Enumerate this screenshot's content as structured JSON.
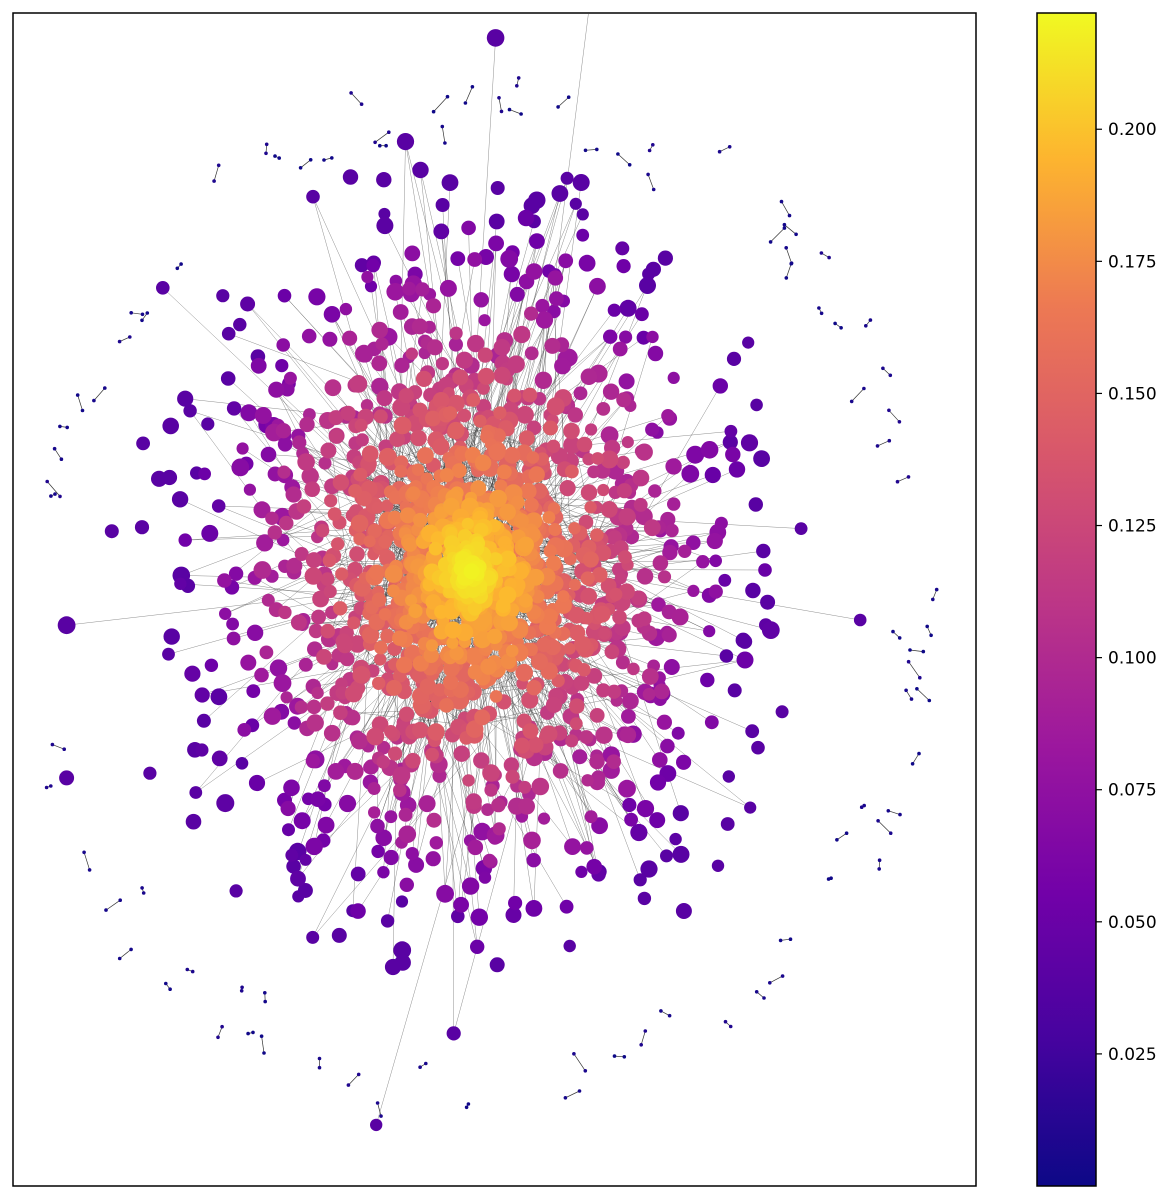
{
  "chart_data": {
    "type": "scatter",
    "description_kind": "network graph, node color encodes a continuous value",
    "title": "",
    "xlabel": "",
    "ylabel": "",
    "colormap": "plasma",
    "colorbar": {
      "range": [
        0.0,
        0.222
      ],
      "ticks": [
        0.025,
        0.05,
        0.075,
        0.1,
        0.125,
        0.15,
        0.175,
        0.2
      ],
      "tick_labels": [
        "0.025",
        "0.050",
        "0.075",
        "0.100",
        "0.125",
        "0.150",
        "0.175",
        "0.200"
      ],
      "placement": "right"
    },
    "grid": false,
    "axes_ticks_visible": false,
    "components": {
      "giant_component": {
        "x_range": [
          0.15,
          0.8
        ],
        "y_range": [
          0.18,
          0.87
        ],
        "value_range": [
          0.04,
          0.222
        ],
        "approx_node_count": 1900
      },
      "peripheral_small_components": {
        "count_approx": 90,
        "typical_size": 2,
        "value_range": [
          0.0,
          0.01
        ]
      }
    },
    "edge_color": "#333333",
    "colors": {
      "low": "#0d0887",
      "mid_low": "#7e03a8",
      "mid": "#cc4778",
      "mid_high": "#f89540",
      "high": "#f0f921"
    }
  }
}
